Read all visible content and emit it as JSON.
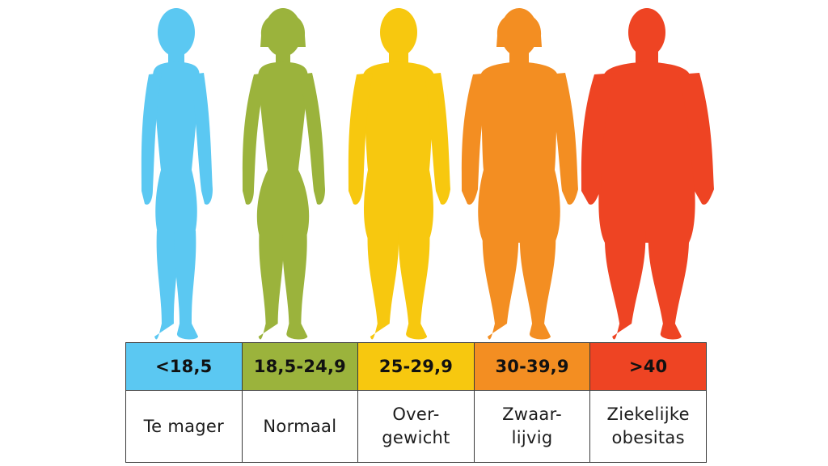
{
  "categories": [
    {
      "range": "<18,5",
      "label": "Te mager",
      "color": "#5BC8F2",
      "body": "slim",
      "hair": "short"
    },
    {
      "range": "18,5-24,9",
      "label": "Normaal",
      "color": "#9BB33C",
      "body": "normal",
      "hair": "bob"
    },
    {
      "range": "25-29,9",
      "label": "Over-\ngewicht",
      "color": "#F7C80F",
      "body": "overweight",
      "hair": "short"
    },
    {
      "range": "30-39,9",
      "label": "Zwaar-\nlijvig",
      "color": "#F38E22",
      "body": "heavy",
      "hair": "bob"
    },
    {
      "range": ">40",
      "label": "Ziekelijke\nobesitas",
      "color": "#EE4423",
      "body": "obese",
      "hair": "short"
    }
  ]
}
